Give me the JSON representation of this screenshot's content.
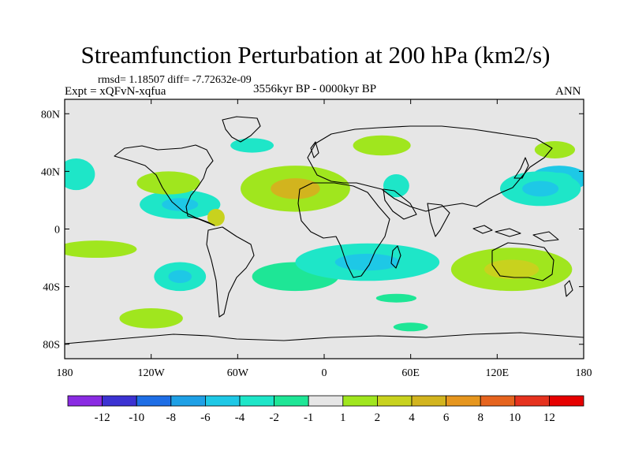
{
  "title": "Streamfunction Perturbation at 200 hPa (km2/s)",
  "stats": "rmsd= 1.18507 diff= -7.72632e-09",
  "expt": "Expt = xQFvN-xqfua",
  "period": "3556kyr BP - 0000kyr BP",
  "season": "ANN",
  "colors": {
    "ocean_background": "#e6e6e6",
    "coastline": "#000000"
  },
  "chart_data": {
    "type": "heatmap",
    "projection": "cylindrical-equidistant",
    "xlim": [
      -180,
      180
    ],
    "ylim": [
      -90,
      90
    ],
    "x_ticks": [
      {
        "value": -180,
        "label": "180"
      },
      {
        "value": -120,
        "label": "120W"
      },
      {
        "value": -60,
        "label": "60W"
      },
      {
        "value": 0,
        "label": "0"
      },
      {
        "value": 60,
        "label": "60E"
      },
      {
        "value": 120,
        "label": "120E"
      },
      {
        "value": 180,
        "label": "180"
      }
    ],
    "y_ticks": [
      {
        "value": 80,
        "label": "80N"
      },
      {
        "value": 40,
        "label": "40N"
      },
      {
        "value": 0,
        "label": "0"
      },
      {
        "value": -40,
        "label": "40S"
      },
      {
        "value": -80,
        "label": "80S"
      }
    ],
    "colorbar": {
      "colors": [
        "#8a2be2",
        "#3c32d2",
        "#1e6ee6",
        "#1ea0e6",
        "#1ec8e6",
        "#1ee6c8",
        "#1ee696",
        "#e6e6e6",
        "#a0e61e",
        "#c8d21e",
        "#d2b41e",
        "#e6961e",
        "#e6641e",
        "#e6321e",
        "#e60000"
      ],
      "labels": [
        "-12",
        "-10",
        "-8",
        "-6",
        "-4",
        "-2",
        "-1",
        "1",
        "2",
        "4",
        "6",
        "8",
        "10",
        "12"
      ]
    },
    "regions": [
      {
        "lon": 163,
        "lat": 35,
        "rx": 20,
        "ry": 9,
        "level": 4,
        "peak": 5
      },
      {
        "lon": 150,
        "lat": 28,
        "rx": 28,
        "ry": 12,
        "level": 5,
        "peak": 4
      },
      {
        "lon": 160,
        "lat": 55,
        "rx": 14,
        "ry": 6,
        "level": 8,
        "peak": 8
      },
      {
        "lon": -172,
        "lat": 38,
        "rx": 13,
        "ry": 11,
        "level": 5,
        "peak": 5
      },
      {
        "lon": -100,
        "lat": 17,
        "rx": 28,
        "ry": 10,
        "level": 5,
        "peak": 4
      },
      {
        "lon": -108,
        "lat": 32,
        "rx": 22,
        "ry": 8,
        "level": 8,
        "peak": 8
      },
      {
        "lon": -50,
        "lat": 58,
        "rx": 15,
        "ry": 5,
        "level": 5,
        "peak": 5
      },
      {
        "lon": -75,
        "lat": 8,
        "rx": 6,
        "ry": 6,
        "level": 9,
        "peak": 9
      },
      {
        "lon": -20,
        "lat": 28,
        "rx": 38,
        "ry": 16,
        "level": 8,
        "peak": 10
      },
      {
        "lon": 40,
        "lat": 58,
        "rx": 20,
        "ry": 7,
        "level": 8,
        "peak": 8
      },
      {
        "lon": 50,
        "lat": 30,
        "rx": 9,
        "ry": 8,
        "level": 5,
        "peak": 5
      },
      {
        "lon": -100,
        "lat": -33,
        "rx": 18,
        "ry": 10,
        "level": 5,
        "peak": 4
      },
      {
        "lon": -158,
        "lat": -14,
        "rx": 28,
        "ry": 6,
        "level": 8,
        "peak": 8
      },
      {
        "lon": -120,
        "lat": -62,
        "rx": 22,
        "ry": 7,
        "level": 8,
        "peak": 8
      },
      {
        "lon": -20,
        "lat": -33,
        "rx": 30,
        "ry": 10,
        "level": 6,
        "peak": 6
      },
      {
        "lon": 30,
        "lat": -23,
        "rx": 50,
        "ry": 13,
        "level": 5,
        "peak": 4
      },
      {
        "lon": 50,
        "lat": -48,
        "rx": 14,
        "ry": 3,
        "level": 6,
        "peak": 6
      },
      {
        "lon": 60,
        "lat": -68,
        "rx": 12,
        "ry": 3,
        "level": 6,
        "peak": 6
      },
      {
        "lon": 130,
        "lat": -28,
        "rx": 42,
        "ry": 15,
        "level": 8,
        "peak": 9
      }
    ]
  }
}
